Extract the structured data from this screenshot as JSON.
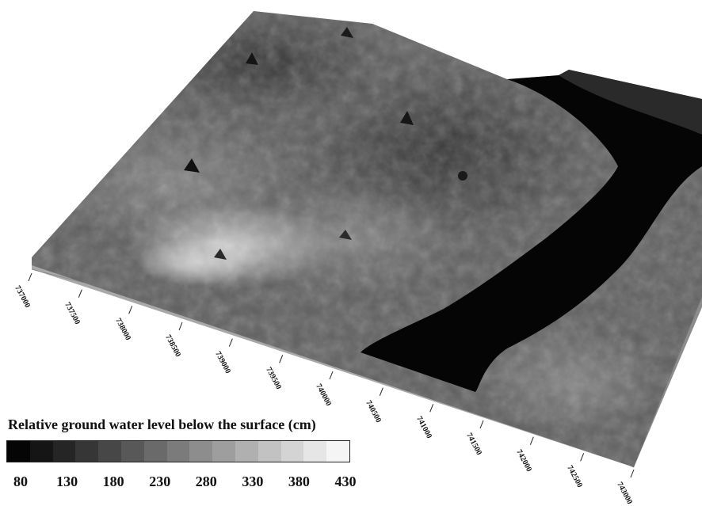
{
  "legend": {
    "title": "Relative ground water level below the surface (cm)",
    "ticks": [
      "80",
      "130",
      "180",
      "230",
      "280",
      "330",
      "380",
      "430"
    ],
    "colors": [
      "#050505",
      "#151515",
      "#252525",
      "#363636",
      "#474747",
      "#585858",
      "#6a6a6a",
      "#7b7b7b",
      "#8d8d8d",
      "#9e9e9e",
      "#b0b0b0",
      "#c2c2c2",
      "#d4d4d4",
      "#e6e6e6",
      "#f5f5f5"
    ]
  },
  "axis": {
    "ticks": [
      "737000",
      "737500",
      "738000",
      "738500",
      "739000",
      "739500",
      "740000",
      "740500",
      "741000",
      "741500",
      "742000",
      "742500",
      "743000"
    ]
  },
  "surface": {
    "river_color": "#000000",
    "base_color": "#a8a8a8"
  }
}
